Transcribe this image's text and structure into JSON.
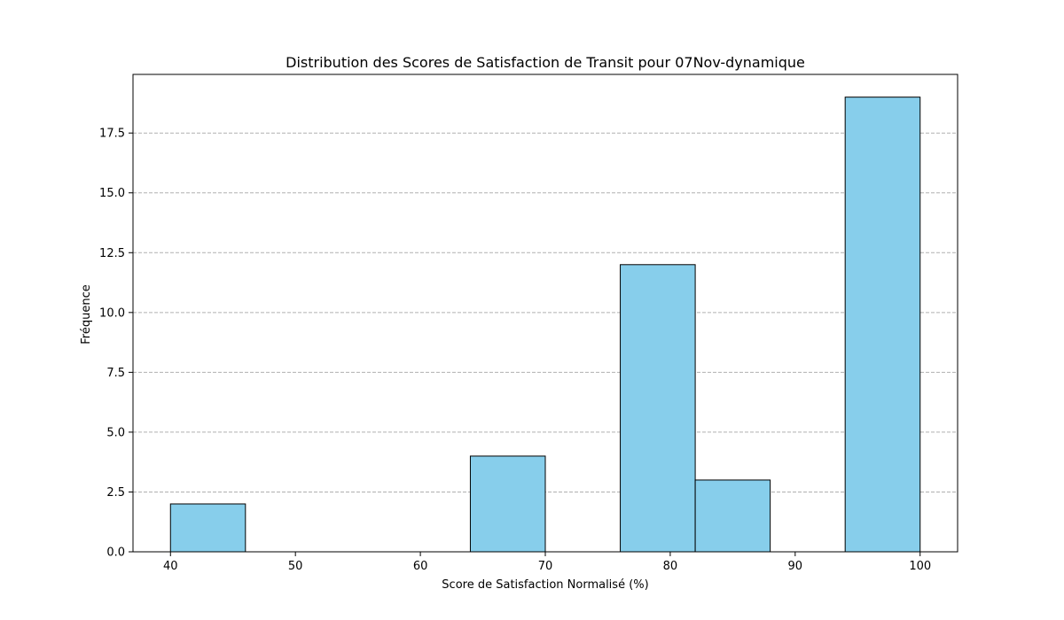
{
  "chart_data": {
    "type": "bar",
    "subtype": "histogram",
    "title": "Distribution des Scores de Satisfaction de Transit pour 07Nov-dynamique",
    "xlabel": "Score de Satisfaction Normalisé (%)",
    "ylabel": "Fréquence",
    "xlim": [
      37,
      103
    ],
    "ylim": [
      0,
      19.95
    ],
    "x_ticks": [
      40,
      50,
      60,
      70,
      80,
      90,
      100
    ],
    "y_ticks": [
      0,
      2.5,
      5,
      7.5,
      10,
      12.5,
      15,
      17.5
    ],
    "x_tick_labels": [
      "40",
      "50",
      "60",
      "70",
      "80",
      "90",
      "100"
    ],
    "y_tick_labels": [
      "0.0",
      "2.5",
      "5.0",
      "7.5",
      "10.0",
      "12.5",
      "15.0",
      "17.5"
    ],
    "bins": [
      {
        "start": 40,
        "end": 46,
        "count": 2
      },
      {
        "start": 46,
        "end": 52,
        "count": 0
      },
      {
        "start": 52,
        "end": 58,
        "count": 0
      },
      {
        "start": 58,
        "end": 64,
        "count": 0
      },
      {
        "start": 64,
        "end": 70,
        "count": 4
      },
      {
        "start": 70,
        "end": 76,
        "count": 0
      },
      {
        "start": 76,
        "end": 82,
        "count": 12
      },
      {
        "start": 82,
        "end": 88,
        "count": 3
      },
      {
        "start": 88,
        "end": 94,
        "count": 0
      },
      {
        "start": 94,
        "end": 100,
        "count": 19
      }
    ],
    "grid": {
      "y": true,
      "x": false,
      "style": "dashed"
    },
    "colors": {
      "bar_fill": "#87ceeb",
      "bar_edge": "#000000",
      "grid": "#b0b0b0"
    }
  }
}
